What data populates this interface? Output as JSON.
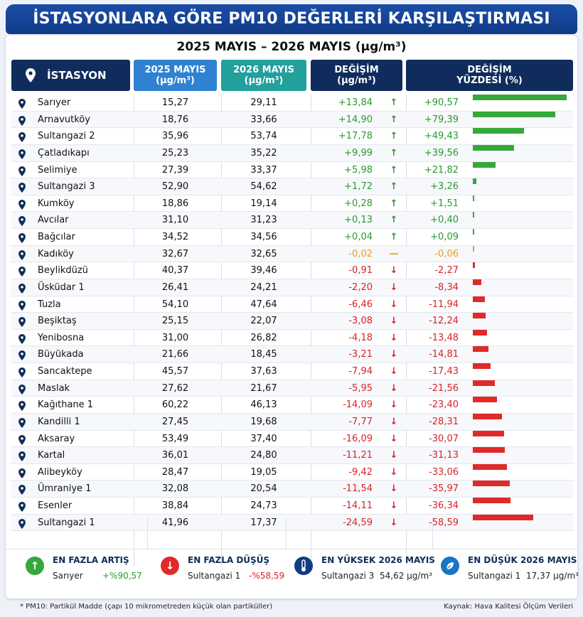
{
  "title": "İSTASYONLARA GÖRE PM10 DEĞERLERİ KARŞILAŞTIRMASI",
  "subtitle": "2025 MAYIS – 2026 MAYIS (μg/m³)",
  "headers": {
    "station": "İSTASYON",
    "y2025_line1": "2025 MAYIS",
    "y2025_line2": "(μg/m³)",
    "y2026_line1": "2026 MAYIS",
    "y2026_line2": "(μg/m³)",
    "change_line1": "DEĞİŞİM",
    "change_line2": "(μg/m³)",
    "pct_line1": "DEĞİŞİM",
    "pct_line2": "YÜZDESİ (%)"
  },
  "colors": {
    "header_dark": "#0f2c5c",
    "col_2025": "#2f82d1",
    "col_2026": "#21a09c",
    "increase": "#35a83a",
    "decrease": "#e02a2a",
    "neutral": "#ef9b1a"
  },
  "icons": {
    "station": "map-pin-icon",
    "increase": "arrow-up-icon",
    "decrease": "arrow-down-icon",
    "neutral": "dash-icon"
  },
  "chart_data": {
    "type": "table",
    "columns": [
      "İSTASYON",
      "2025 MAYIS (μg/m³)",
      "2026 MAYIS (μg/m³)",
      "DEĞİŞİM (μg/m³)",
      "DEĞİŞİM YÜZDESİ (%)"
    ],
    "rows": [
      {
        "station": "Sarıyer",
        "v2025": "15,27",
        "v2026": "29,11",
        "change": "+13,84",
        "pct": "+90,57",
        "pct_value": 90.57,
        "trend": "up"
      },
      {
        "station": "Arnavutköy",
        "v2025": "18,76",
        "v2026": "33,66",
        "change": "+14,90",
        "pct": "+79,39",
        "pct_value": 79.39,
        "trend": "up"
      },
      {
        "station": "Sultangazi 2",
        "v2025": "35,96",
        "v2026": "53,74",
        "change": "+17,78",
        "pct": "+49,43",
        "pct_value": 49.43,
        "trend": "up"
      },
      {
        "station": "Çatladıkapı",
        "v2025": "25,23",
        "v2026": "35,22",
        "change": "+9,99",
        "pct": "+39,56",
        "pct_value": 39.56,
        "trend": "up"
      },
      {
        "station": "Selimiye",
        "v2025": "27,39",
        "v2026": "33,37",
        "change": "+5,98",
        "pct": "+21,82",
        "pct_value": 21.82,
        "trend": "up"
      },
      {
        "station": "Sultangazi 3",
        "v2025": "52,90",
        "v2026": "54,62",
        "change": "+1,72",
        "pct": "+3,26",
        "pct_value": 3.26,
        "trend": "up"
      },
      {
        "station": "Kumköy",
        "v2025": "18,86",
        "v2026": "19,14",
        "change": "+0,28",
        "pct": "+1,51",
        "pct_value": 1.51,
        "trend": "up"
      },
      {
        "station": "Avcılar",
        "v2025": "31,10",
        "v2026": "31,23",
        "change": "+0,13",
        "pct": "+0,40",
        "pct_value": 0.4,
        "trend": "up"
      },
      {
        "station": "Bağcılar",
        "v2025": "34,52",
        "v2026": "34,56",
        "change": "+0,04",
        "pct": "+0,09",
        "pct_value": 0.09,
        "trend": "up"
      },
      {
        "station": "Kadıköy",
        "v2025": "32,67",
        "v2026": "32,65",
        "change": "-0,02",
        "pct": "-0,06",
        "pct_value": -0.06,
        "trend": "flat"
      },
      {
        "station": "Beylikdüzü",
        "v2025": "40,37",
        "v2026": "39,46",
        "change": "-0,91",
        "pct": "-2,27",
        "pct_value": -2.27,
        "trend": "down"
      },
      {
        "station": "Üsküdar 1",
        "v2025": "26,41",
        "v2026": "24,21",
        "change": "-2,20",
        "pct": "-8,34",
        "pct_value": -8.34,
        "trend": "down"
      },
      {
        "station": "Tuzla",
        "v2025": "54,10",
        "v2026": "47,64",
        "change": "-6,46",
        "pct": "-11,94",
        "pct_value": -11.94,
        "trend": "down"
      },
      {
        "station": "Beşiktaş",
        "v2025": "25,15",
        "v2026": "22,07",
        "change": "-3,08",
        "pct": "-12,24",
        "pct_value": -12.24,
        "trend": "down"
      },
      {
        "station": "Yenibosna",
        "v2025": "31,00",
        "v2026": "26,82",
        "change": "-4,18",
        "pct": "-13,48",
        "pct_value": -13.48,
        "trend": "down"
      },
      {
        "station": "Büyükada",
        "v2025": "21,66",
        "v2026": "18,45",
        "change": "-3,21",
        "pct": "-14,81",
        "pct_value": -14.81,
        "trend": "down"
      },
      {
        "station": "Sancaktepe",
        "v2025": "45,57",
        "v2026": "37,63",
        "change": "-7,94",
        "pct": "-17,43",
        "pct_value": -17.43,
        "trend": "down"
      },
      {
        "station": "Maslak",
        "v2025": "27,62",
        "v2026": "21,67",
        "change": "-5,95",
        "pct": "-21,56",
        "pct_value": -21.56,
        "trend": "down"
      },
      {
        "station": "Kağıthane 1",
        "v2025": "60,22",
        "v2026": "46,13",
        "change": "-14,09",
        "pct": "-23,40",
        "pct_value": -23.4,
        "trend": "down"
      },
      {
        "station": "Kandilli 1",
        "v2025": "27,45",
        "v2026": "19,68",
        "change": "-7,77",
        "pct": "-28,31",
        "pct_value": -28.31,
        "trend": "down"
      },
      {
        "station": "Aksaray",
        "v2025": "53,49",
        "v2026": "37,40",
        "change": "-16,09",
        "pct": "-30,07",
        "pct_value": -30.07,
        "trend": "down"
      },
      {
        "station": "Kartal",
        "v2025": "36,01",
        "v2026": "24,80",
        "change": "-11,21",
        "pct": "-31,13",
        "pct_value": -31.13,
        "trend": "down"
      },
      {
        "station": "Alibeyköy",
        "v2025": "28,47",
        "v2026": "19,05",
        "change": "-9,42",
        "pct": "-33,06",
        "pct_value": -33.06,
        "trend": "down"
      },
      {
        "station": "Ümraniye 1",
        "v2025": "32,08",
        "v2026": "20,54",
        "change": "-11,54",
        "pct": "-35,97",
        "pct_value": -35.97,
        "trend": "down"
      },
      {
        "station": "Esenler",
        "v2025": "38,84",
        "v2026": "24,73",
        "change": "-14,11",
        "pct": "-36,34",
        "pct_value": -36.34,
        "trend": "down"
      },
      {
        "station": "Sultangazi 1",
        "v2025": "41,96",
        "v2026": "17,37",
        "change": "-24,59",
        "pct": "-58,59",
        "pct_value": -58.59,
        "trend": "down"
      }
    ]
  },
  "summary": {
    "max_increase": {
      "title": "EN FAZLA ARTIŞ",
      "station": "Sarıyer",
      "value": "+%90,57",
      "icon": "arrow-up-circle-icon"
    },
    "max_decrease": {
      "title": "EN FAZLA DÜŞÜŞ",
      "station": "Sultangazi 1",
      "value": "-%58,59",
      "icon": "arrow-down-circle-icon"
    },
    "highest_2026": {
      "title": "EN YÜKSEK 2026 MAYIS",
      "station": "Sultangazi 3",
      "value": "54,62 μg/m³",
      "icon": "thermometer-icon"
    },
    "lowest_2026": {
      "title": "EN DÜŞÜK 2026 MAYIS",
      "station": "Sultangazi 1",
      "value": "17,37 μg/m³",
      "icon": "leaf-icon"
    }
  },
  "footnote": "* PM10: Partikül Madde (çapı 10 mikrometreden küçük olan partiküller)",
  "source": "Kaynak: Hava Kalitesi Ölçüm Verileri"
}
